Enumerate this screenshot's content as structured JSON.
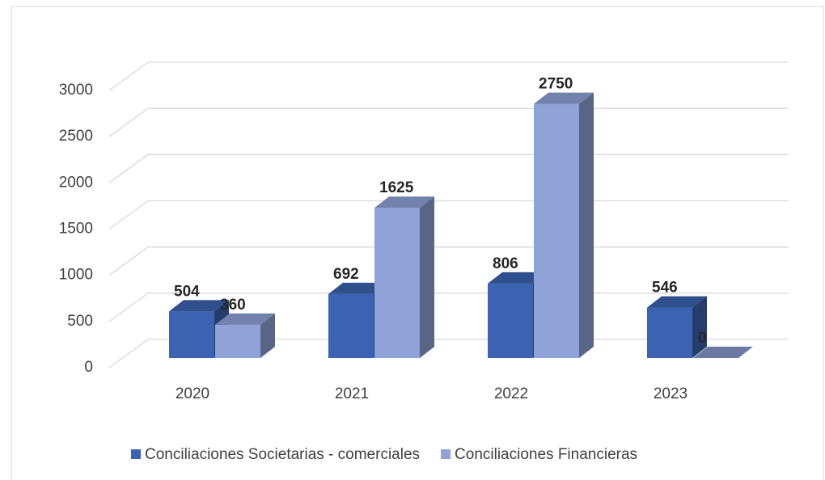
{
  "chart_data": {
    "type": "bar3d",
    "categories": [
      "2020",
      "2021",
      "2022",
      "2023"
    ],
    "series": [
      {
        "name": "Conciliaciones Societarias - comerciales",
        "color": "#3b63b1",
        "values": [
          504,
          692,
          806,
          546
        ]
      },
      {
        "name": "Conciliaciones Financieras",
        "color": "#8fa3d8",
        "values": [
          360,
          1625,
          2750,
          0
        ]
      }
    ],
    "ylim": [
      0,
      3000
    ],
    "yticks": [
      0,
      500,
      1000,
      1500,
      2000,
      2500,
      3000
    ],
    "grid": true,
    "legend": "bottom"
  }
}
